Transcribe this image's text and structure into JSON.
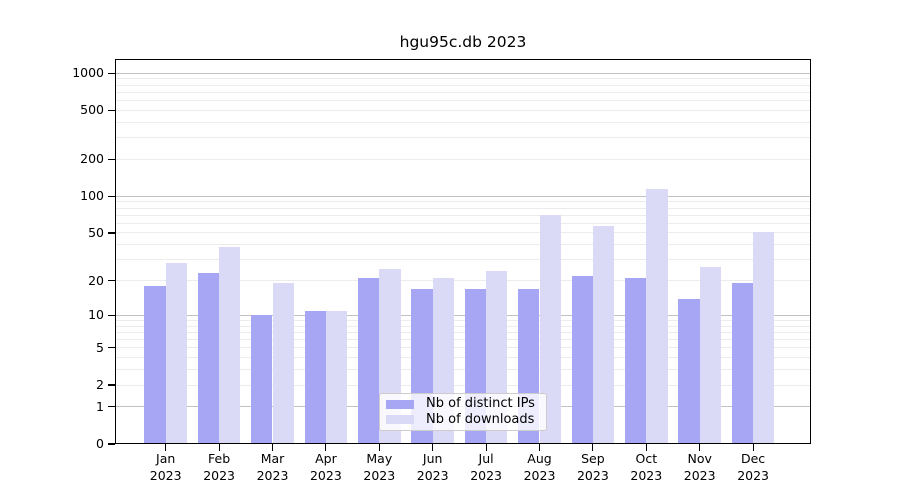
{
  "figure": {
    "title": "hgu95c.db 2023",
    "background": "#ffffff"
  },
  "colors": {
    "ips": "#a6a6f5",
    "downloads": "#dadaf7",
    "grid_major": "#c2c2c2",
    "grid_minor": "#ececec",
    "axis": "#000000",
    "legend_border": "#cccccc",
    "text": "#000000"
  },
  "legend": {
    "entries": [
      {
        "label": "Nb of distinct IPs",
        "series": "ips"
      },
      {
        "label": "Nb of downloads",
        "series": "downloads"
      }
    ],
    "position": "lower center"
  },
  "chart_data": {
    "type": "bar",
    "title": "hgu95c.db 2023",
    "categories": [
      "Jan 2023",
      "Feb 2023",
      "Mar 2023",
      "Apr 2023",
      "May 2023",
      "Jun 2023",
      "Jul 2023",
      "Aug 2023",
      "Sep 2023",
      "Oct 2023",
      "Nov 2023",
      "Dec 2023"
    ],
    "months": [
      {
        "month": "Jan",
        "year": "2023"
      },
      {
        "month": "Feb",
        "year": "2023"
      },
      {
        "month": "Mar",
        "year": "2023"
      },
      {
        "month": "Apr",
        "year": "2023"
      },
      {
        "month": "May",
        "year": "2023"
      },
      {
        "month": "Jun",
        "year": "2023"
      },
      {
        "month": "Jul",
        "year": "2023"
      },
      {
        "month": "Aug",
        "year": "2023"
      },
      {
        "month": "Sep",
        "year": "2023"
      },
      {
        "month": "Oct",
        "year": "2023"
      },
      {
        "month": "Nov",
        "year": "2023"
      },
      {
        "month": "Dec",
        "year": "2023"
      }
    ],
    "series": [
      {
        "name": "Nb of distinct IPs",
        "key": "ips",
        "values": [
          18,
          23,
          10,
          11,
          21,
          17,
          17,
          17,
          22,
          21,
          14,
          19
        ]
      },
      {
        "name": "Nb of downloads",
        "key": "downloads",
        "values": [
          28,
          38,
          19,
          11,
          25,
          21,
          24,
          70,
          57,
          115,
          26,
          51
        ]
      }
    ],
    "xlabel": "",
    "ylabel": "",
    "y_scale": "log10(1+v)",
    "y_ticks": [
      0,
      1,
      2,
      5,
      10,
      20,
      50,
      100,
      200,
      500,
      1000
    ],
    "ylim": [
      0,
      1300
    ],
    "grid": "horizontal major and log-minor gridlines",
    "legend_position": "lower center"
  }
}
